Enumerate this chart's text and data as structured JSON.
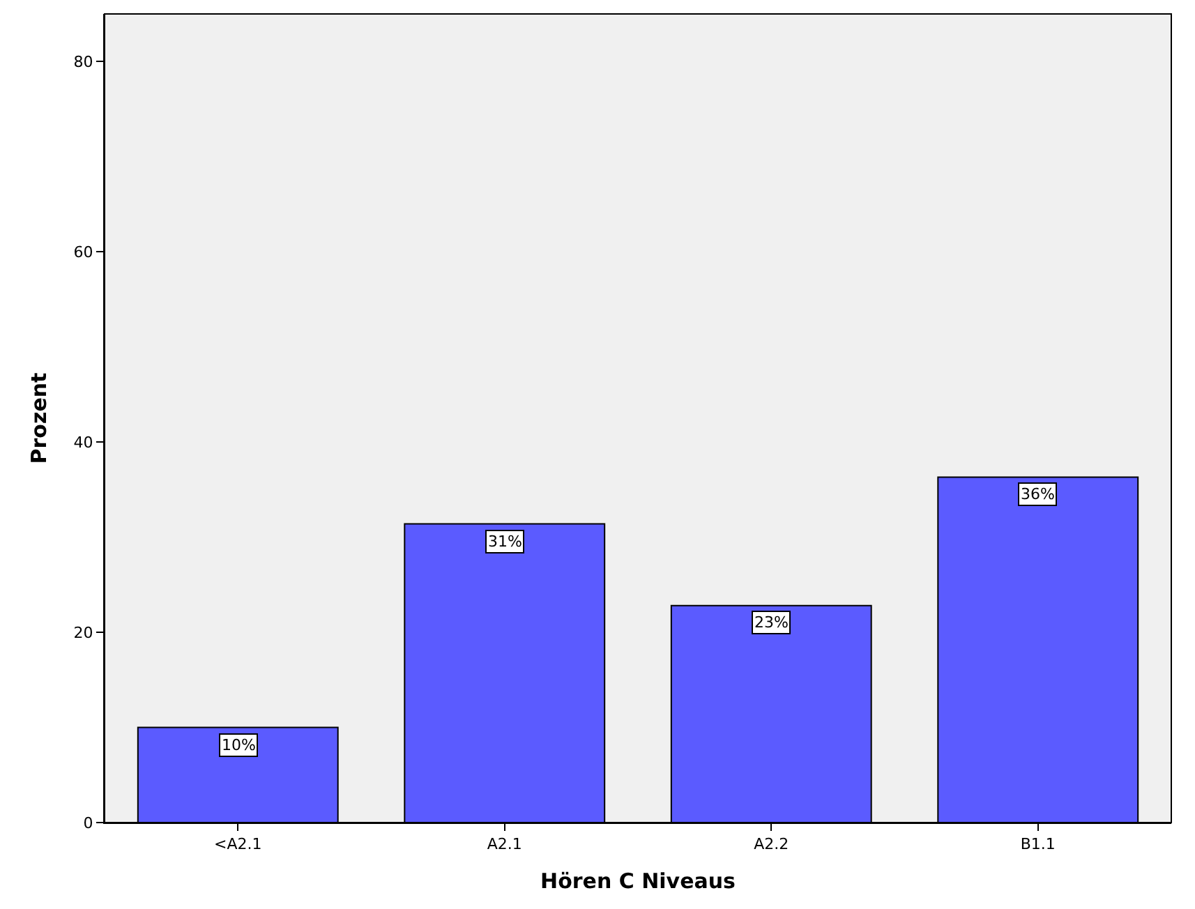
{
  "chart_data": {
    "type": "bar",
    "xlabel": "Hören C Niveaus",
    "ylabel": "Prozent",
    "categories": [
      "<A2.1",
      "A2.1",
      "A2.2",
      "B1.1"
    ],
    "values": [
      10,
      31.4,
      22.8,
      36.3
    ],
    "value_labels": [
      "10%",
      "31%",
      "23%",
      "36%"
    ],
    "color": "#5b5bff",
    "ylim": [
      0,
      85
    ],
    "yticks": [
      0,
      20,
      40,
      60,
      80
    ],
    "grid": false,
    "legend": false
  }
}
